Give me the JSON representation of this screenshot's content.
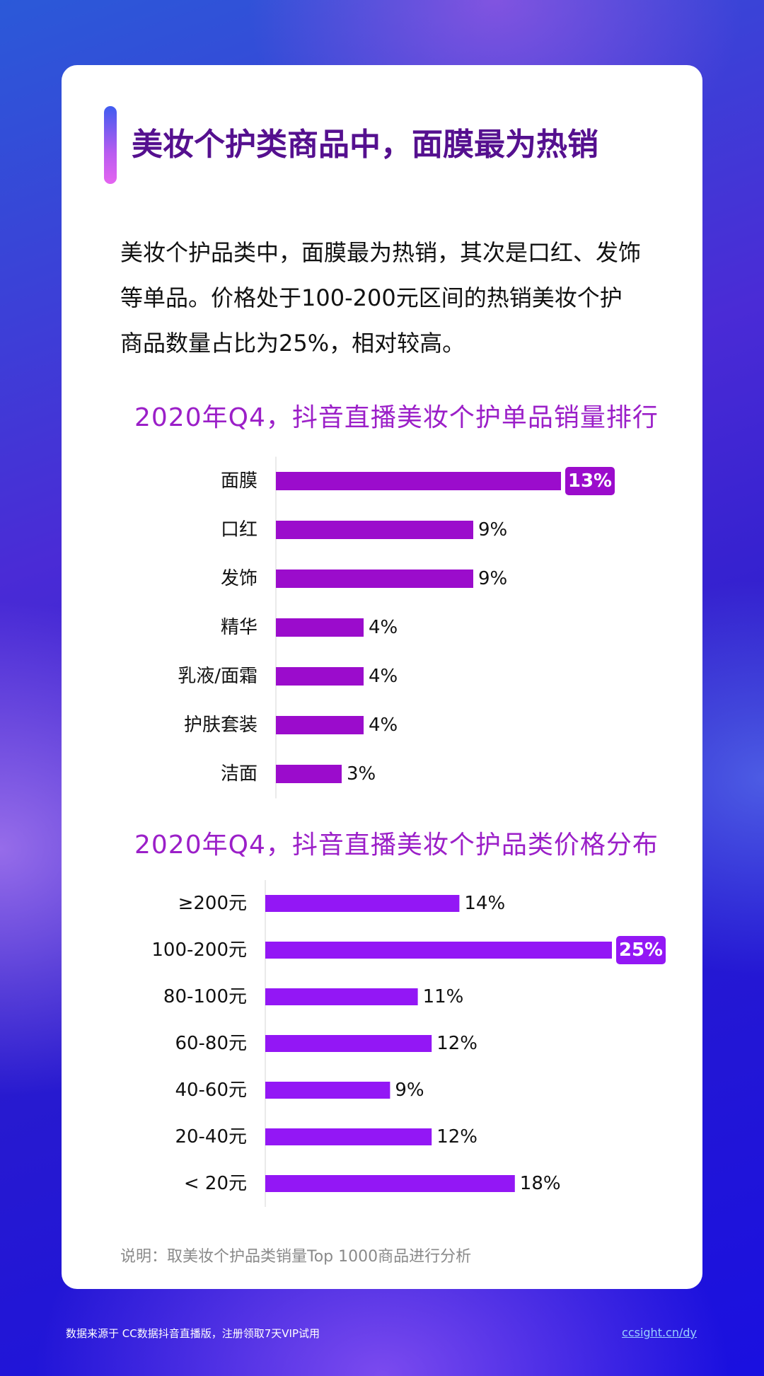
{
  "page": {
    "title": "美妆个护类商品中，面膜最为热销",
    "intro": "美妆个护品类中，面膜最为热销，其次是口红、发饰等单品。价格处于100-200元区间的热销美妆个护商品数量占比为25%，相对较高。",
    "note": "说明：取美妆个护品类销量Top 1000商品进行分析",
    "footer_source": "数据来源于 CC数据抖音直播版，注册领取7天VIP试用",
    "footer_link": "ccsight.cn/dy"
  },
  "colors": {
    "title": "#55108f",
    "chart_title": "#9b1fc8",
    "bar_chart1": "#9b0ccc",
    "bar_chart2": "#9317f5",
    "highlight_label_text": "#ffffff"
  },
  "chart_data": [
    {
      "type": "bar",
      "orientation": "horizontal",
      "title": "2020年Q4，抖音直播美妆个护单品销量排行",
      "categories": [
        "面膜",
        "口红",
        "发饰",
        "精华",
        "乳液/面霜",
        "护肤套装",
        "洁面"
      ],
      "values": [
        13,
        9,
        9,
        4,
        4,
        4,
        3
      ],
      "value_labels": [
        "13%",
        "9%",
        "9%",
        "4%",
        "4%",
        "4%",
        "3%"
      ],
      "unit": "%",
      "highlight_index": 0,
      "grid": false,
      "legend": "none"
    },
    {
      "type": "bar",
      "orientation": "horizontal",
      "title": "2020年Q4，抖音直播美妆个护品类价格分布",
      "categories": [
        "≥200元",
        "100-200元",
        "80-100元",
        "60-80元",
        "40-60元",
        "20-40元",
        "< 20元"
      ],
      "values": [
        14,
        25,
        11,
        12,
        9,
        12,
        18
      ],
      "value_labels": [
        "14%",
        "25%",
        "11%",
        "12%",
        "9%",
        "12%",
        "18%"
      ],
      "unit": "%",
      "highlight_index": 1,
      "grid": false,
      "legend": "none"
    }
  ]
}
